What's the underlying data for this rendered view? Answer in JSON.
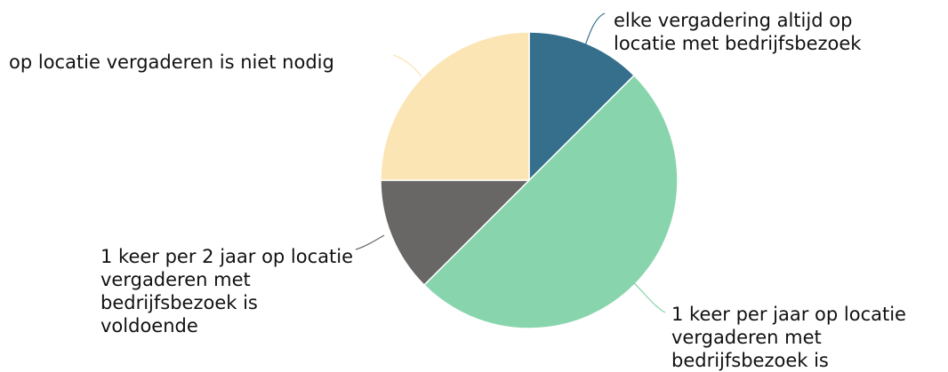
{
  "chart_data": {
    "type": "pie",
    "categories": [
      "elke vergadering altijd op locatie met bedrijfsbezoek",
      "1 keer per jaar op locatie vergaderen met bedrijfsbezoek is",
      "1 keer per 2 jaar op locatie vergaderen met bedrijfsbezoek is voldoende",
      "op locatie vergaderen is niet nodig"
    ],
    "values": [
      12.5,
      50,
      12.5,
      25
    ],
    "colors": [
      "#356f8c",
      "#88d5ad",
      "#686765",
      "#fce5b5"
    ]
  }
}
